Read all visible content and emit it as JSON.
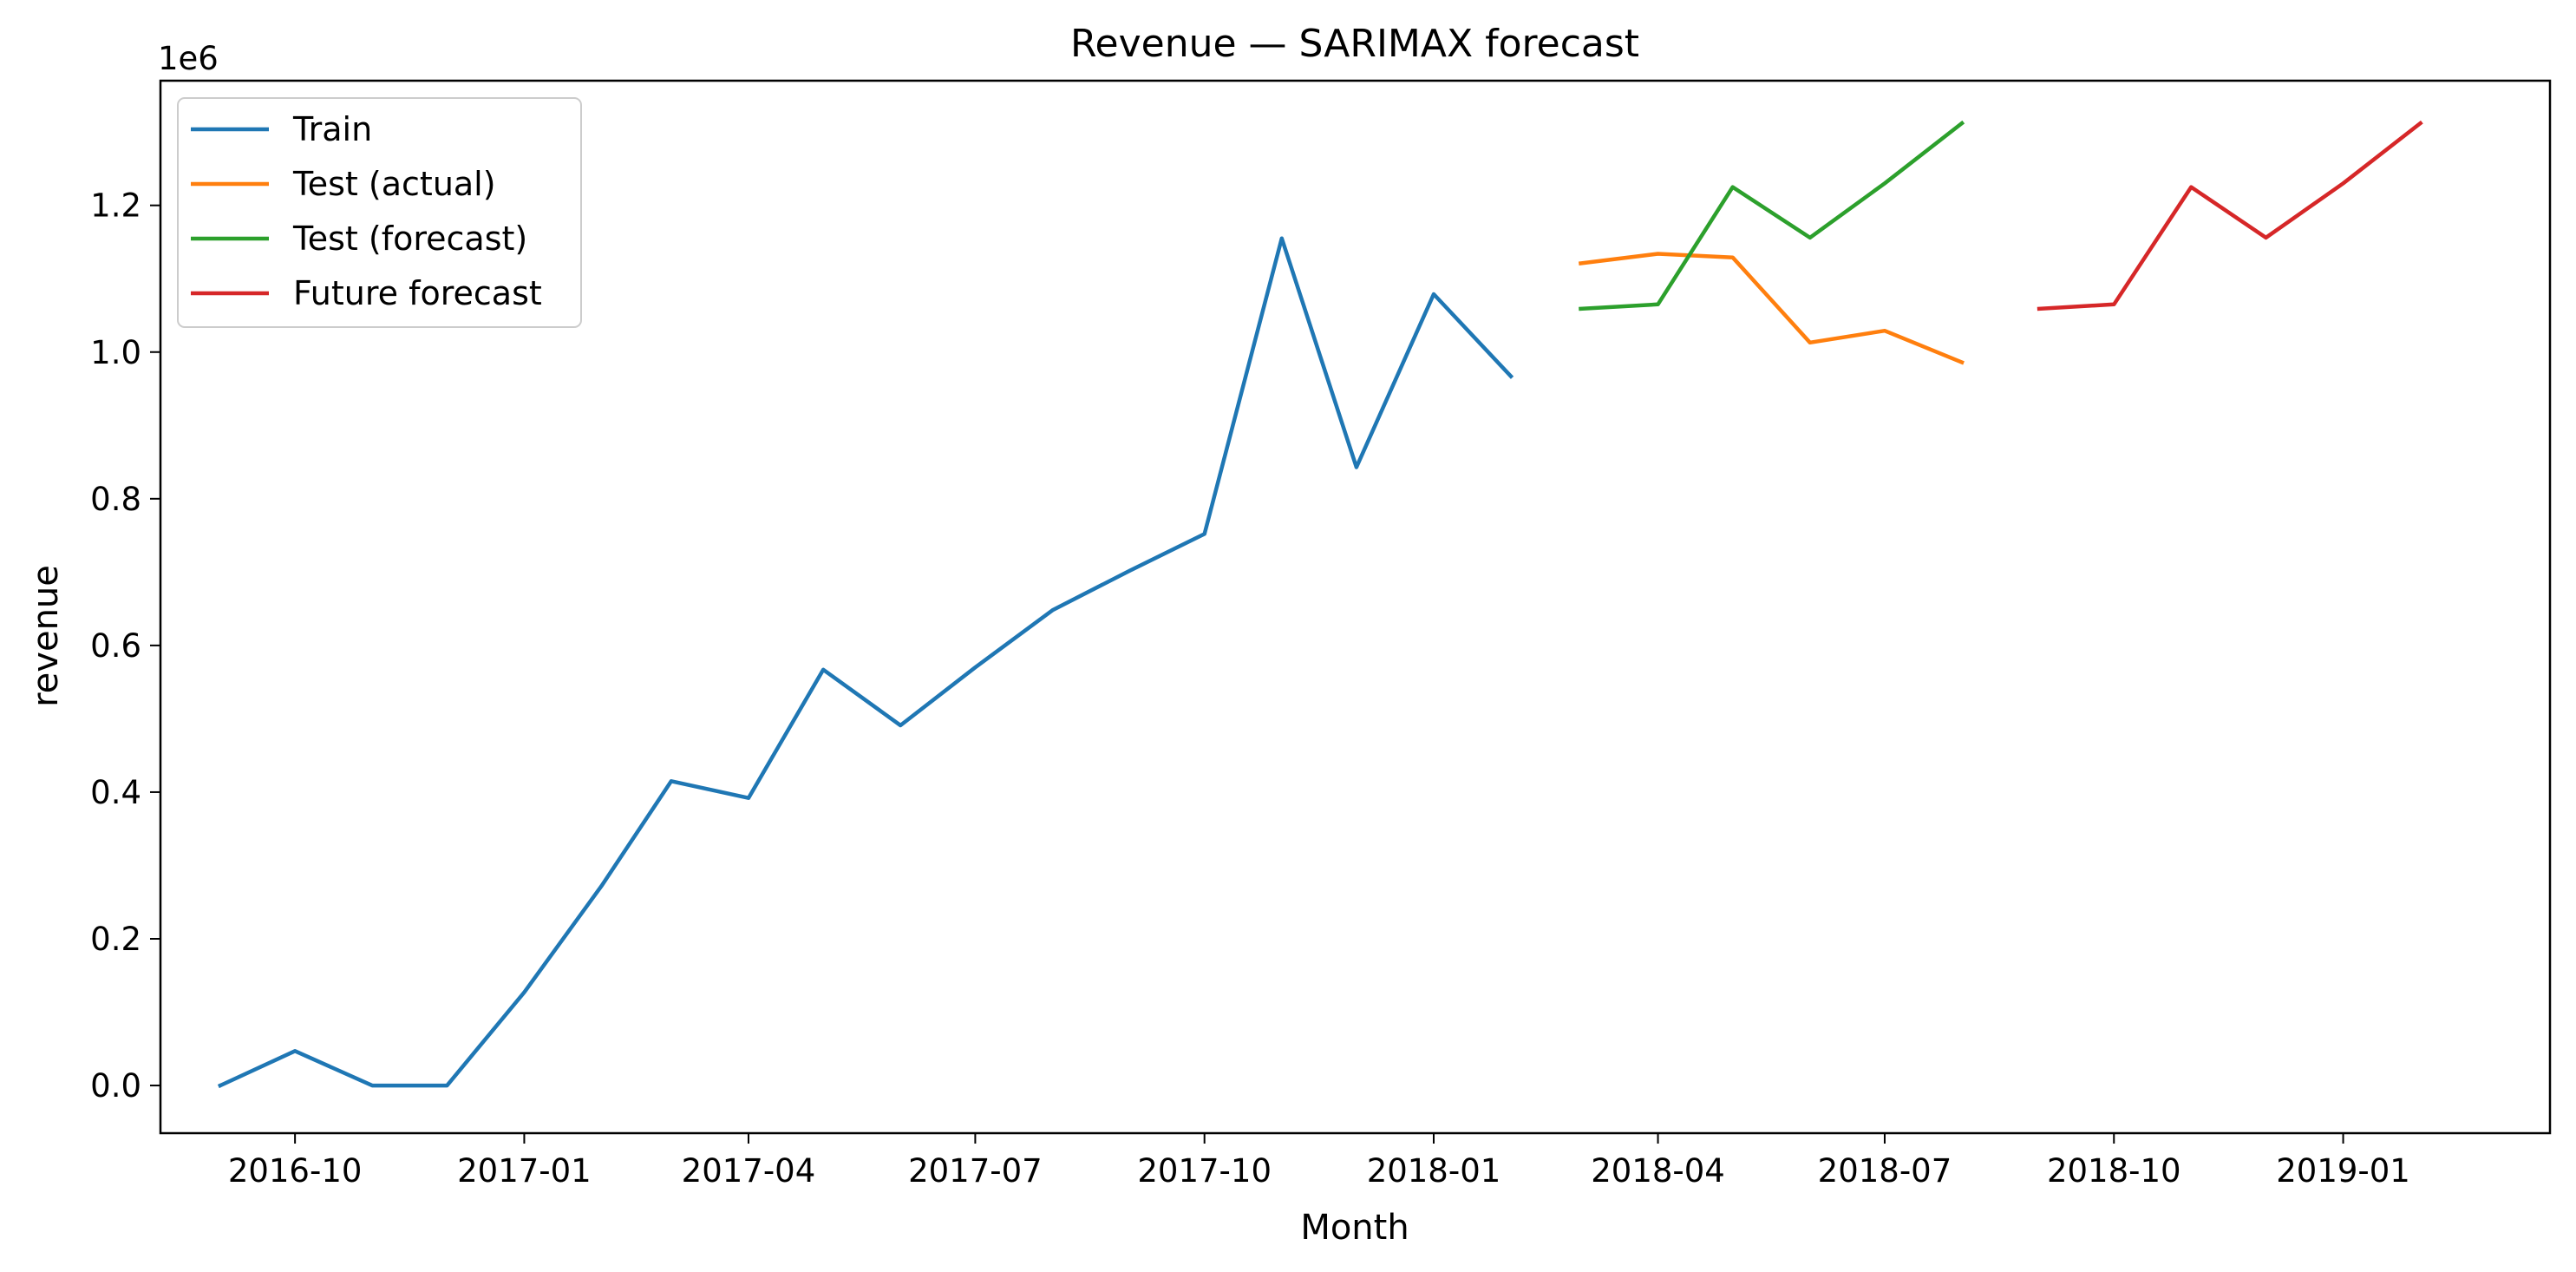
{
  "chart_data": {
    "type": "line",
    "title": "Revenue — SARIMAX forecast",
    "xlabel": "Month",
    "ylabel": "revenue",
    "y_offset_label": "1e6",
    "y_scale": 1000000,
    "xlim": [
      "2016-08-08",
      "2019-03-25"
    ],
    "ylim": [
      -65000,
      1370000
    ],
    "x_ticks": [
      "2016-10-01",
      "2017-01-01",
      "2017-04-01",
      "2017-07-01",
      "2017-10-01",
      "2018-01-01",
      "2018-04-01",
      "2018-07-01",
      "2018-10-01",
      "2019-01-01"
    ],
    "x_tick_labels": [
      "2016-10",
      "2017-01",
      "2017-04",
      "2017-07",
      "2017-10",
      "2018-01",
      "2018-04",
      "2018-07",
      "2018-10",
      "2019-01"
    ],
    "y_ticks": [
      0,
      200000,
      400000,
      600000,
      800000,
      1000000,
      1200000
    ],
    "y_tick_labels": [
      "0.0",
      "0.2",
      "0.4",
      "0.6",
      "0.8",
      "1.0",
      "1.2"
    ],
    "grid": false,
    "legend_position": "top-left",
    "series": [
      {
        "name": "Train",
        "color": "#1f77b4",
        "x": [
          "2016-09-01",
          "2016-10-01",
          "2016-11-01",
          "2016-12-01",
          "2017-01-01",
          "2017-02-01",
          "2017-03-01",
          "2017-04-01",
          "2017-05-01",
          "2017-06-01",
          "2017-07-01",
          "2017-08-01",
          "2017-09-01",
          "2017-10-01",
          "2017-11-01",
          "2017-12-01",
          "2018-01-01",
          "2018-02-01"
        ],
        "y": [
          0,
          47000,
          0,
          0,
          127000,
          272000,
          415000,
          392000,
          567000,
          491000,
          570000,
          648000,
          702000,
          752000,
          1155000,
          843000,
          1079000,
          967000
        ]
      },
      {
        "name": "Test (actual)",
        "color": "#ff7f0e",
        "x": [
          "2018-03-01",
          "2018-04-01",
          "2018-05-01",
          "2018-06-01",
          "2018-07-01",
          "2018-08-01"
        ],
        "y": [
          1121000,
          1134000,
          1129000,
          1013000,
          1029000,
          986000
        ]
      },
      {
        "name": "Test (forecast)",
        "color": "#2ca02c",
        "x": [
          "2018-03-01",
          "2018-04-01",
          "2018-05-01",
          "2018-06-01",
          "2018-07-01",
          "2018-08-01"
        ],
        "y": [
          1059000,
          1065000,
          1225000,
          1156000,
          1230000,
          1312000
        ]
      },
      {
        "name": "Future forecast",
        "color": "#d62728",
        "x": [
          "2018-09-01",
          "2018-10-01",
          "2018-11-01",
          "2018-12-01",
          "2019-01-01",
          "2019-02-01"
        ],
        "y": [
          1059000,
          1065000,
          1225000,
          1156000,
          1230000,
          1312000
        ]
      }
    ]
  }
}
